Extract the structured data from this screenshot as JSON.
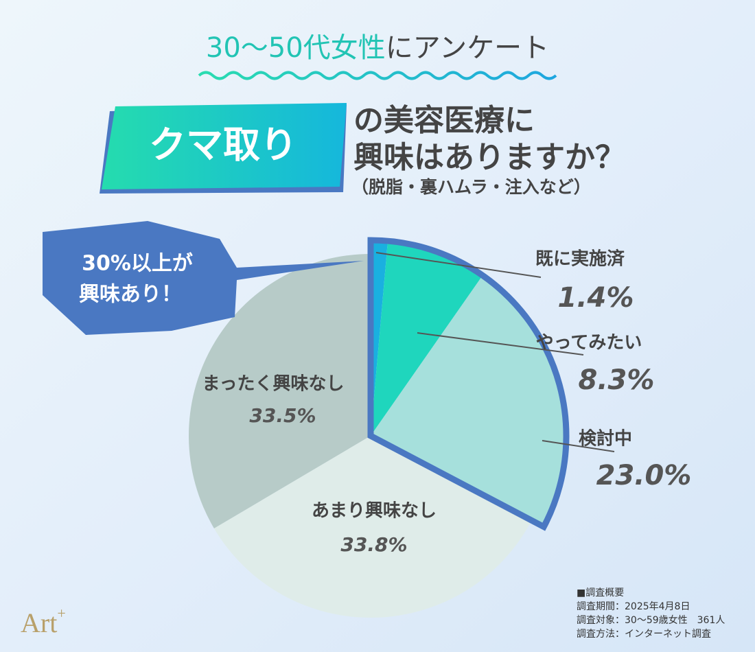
{
  "header": {
    "title_highlight": "30〜50代女性",
    "title_rest": "にアンケート",
    "badge": "クマ取り",
    "question": [
      "の美容医療に",
      "興味はありますか？"
    ],
    "subtitle": "（脱脂・裏ハムラ・注入など）"
  },
  "callout": [
    "30%以上が",
    "興味あり！"
  ],
  "chart_data": {
    "type": "pie",
    "categories": [
      "既に実施済",
      "やってみたい",
      "検討中",
      "あまり興味なし",
      "まったく興味なし"
    ],
    "values": [
      1.4,
      8.3,
      23.0,
      33.8,
      33.5
    ],
    "value_labels": [
      "1.4%",
      "8.3%",
      "23.0%",
      "33.8%",
      "33.5%"
    ],
    "colors": [
      "#1ab0e0",
      "#1fd6bd",
      "#a6e0dc",
      "#dfece9",
      "#b7cbc8"
    ],
    "highlight_color": "#4a78c2"
  },
  "notes": [
    "■調査概要",
    "調査期間：2025年4月8日",
    "調査対象：30〜59歳女性　361人",
    "調査方法：インターネット調査"
  ],
  "logo": {
    "text": "Art",
    "sup": "+"
  }
}
